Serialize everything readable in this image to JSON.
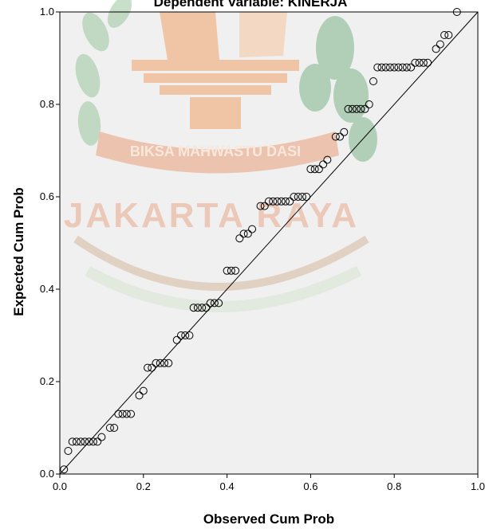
{
  "chart_data": {
    "type": "scatter",
    "title": "Dependent Variable: KINERJA",
    "xlabel": "Observed Cum Prob",
    "ylabel": "Expected Cum Prob",
    "xlim": [
      0,
      1
    ],
    "ylim": [
      0,
      1
    ],
    "xticks": [
      "0.0",
      "0.2",
      "0.4",
      "0.6",
      "0.8",
      "1.0"
    ],
    "yticks": [
      "0.0",
      "0.2",
      "0.4",
      "0.6",
      "0.8",
      "1.0"
    ],
    "grid": false,
    "reference_line": [
      [
        0,
        0
      ],
      [
        1,
        1
      ]
    ],
    "points": [
      [
        0.01,
        0.01
      ],
      [
        0.02,
        0.05
      ],
      [
        0.03,
        0.07
      ],
      [
        0.04,
        0.07
      ],
      [
        0.05,
        0.07
      ],
      [
        0.06,
        0.07
      ],
      [
        0.07,
        0.07
      ],
      [
        0.08,
        0.07
      ],
      [
        0.09,
        0.07
      ],
      [
        0.1,
        0.08
      ],
      [
        0.12,
        0.1
      ],
      [
        0.13,
        0.1
      ],
      [
        0.14,
        0.13
      ],
      [
        0.15,
        0.13
      ],
      [
        0.16,
        0.13
      ],
      [
        0.17,
        0.13
      ],
      [
        0.19,
        0.17
      ],
      [
        0.2,
        0.18
      ],
      [
        0.21,
        0.23
      ],
      [
        0.22,
        0.23
      ],
      [
        0.23,
        0.24
      ],
      [
        0.24,
        0.24
      ],
      [
        0.25,
        0.24
      ],
      [
        0.26,
        0.24
      ],
      [
        0.28,
        0.29
      ],
      [
        0.29,
        0.3
      ],
      [
        0.3,
        0.3
      ],
      [
        0.31,
        0.3
      ],
      [
        0.32,
        0.36
      ],
      [
        0.33,
        0.36
      ],
      [
        0.34,
        0.36
      ],
      [
        0.35,
        0.36
      ],
      [
        0.36,
        0.37
      ],
      [
        0.37,
        0.37
      ],
      [
        0.38,
        0.37
      ],
      [
        0.4,
        0.44
      ],
      [
        0.41,
        0.44
      ],
      [
        0.42,
        0.44
      ],
      [
        0.43,
        0.51
      ],
      [
        0.44,
        0.52
      ],
      [
        0.45,
        0.52
      ],
      [
        0.46,
        0.53
      ],
      [
        0.48,
        0.58
      ],
      [
        0.49,
        0.58
      ],
      [
        0.5,
        0.59
      ],
      [
        0.51,
        0.59
      ],
      [
        0.52,
        0.59
      ],
      [
        0.53,
        0.59
      ],
      [
        0.54,
        0.59
      ],
      [
        0.55,
        0.59
      ],
      [
        0.56,
        0.6
      ],
      [
        0.57,
        0.6
      ],
      [
        0.58,
        0.6
      ],
      [
        0.59,
        0.6
      ],
      [
        0.6,
        0.66
      ],
      [
        0.61,
        0.66
      ],
      [
        0.62,
        0.66
      ],
      [
        0.63,
        0.67
      ],
      [
        0.64,
        0.68
      ],
      [
        0.66,
        0.73
      ],
      [
        0.67,
        0.73
      ],
      [
        0.68,
        0.74
      ],
      [
        0.69,
        0.79
      ],
      [
        0.7,
        0.79
      ],
      [
        0.71,
        0.79
      ],
      [
        0.72,
        0.79
      ],
      [
        0.73,
        0.79
      ],
      [
        0.74,
        0.8
      ],
      [
        0.75,
        0.85
      ],
      [
        0.76,
        0.88
      ],
      [
        0.77,
        0.88
      ],
      [
        0.78,
        0.88
      ],
      [
        0.79,
        0.88
      ],
      [
        0.8,
        0.88
      ],
      [
        0.81,
        0.88
      ],
      [
        0.82,
        0.88
      ],
      [
        0.83,
        0.88
      ],
      [
        0.84,
        0.88
      ],
      [
        0.85,
        0.89
      ],
      [
        0.86,
        0.89
      ],
      [
        0.87,
        0.89
      ],
      [
        0.88,
        0.89
      ],
      [
        0.9,
        0.92
      ],
      [
        0.91,
        0.93
      ],
      [
        0.92,
        0.95
      ],
      [
        0.93,
        0.95
      ],
      [
        0.95,
        1.0
      ]
    ]
  },
  "watermark": {
    "ribbon_text": "BIKSA MAHWASTU DASI",
    "city_text": "JAKARTA RAYA"
  }
}
